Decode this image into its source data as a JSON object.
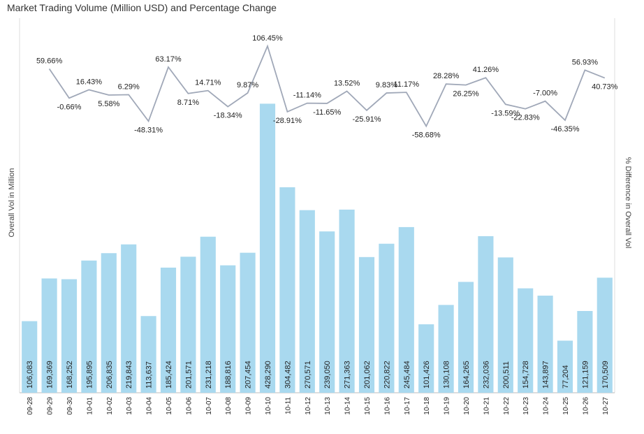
{
  "chart_data": {
    "type": "bar-line",
    "title": "Market Trading Volume (Million USD) and Percentage Change",
    "y_label": "Overall Vol in Million",
    "y2_label": "% Difference in Overall Vol",
    "categories": [
      "09-28",
      "09-29",
      "09-30",
      "10-01",
      "10-02",
      "10-03",
      "10-04",
      "10-05",
      "10-06",
      "10-07",
      "10-08",
      "10-09",
      "10-10",
      "10-11",
      "10-12",
      "10-13",
      "10-14",
      "10-15",
      "10-16",
      "10-17",
      "10-18",
      "10-19",
      "10-20",
      "10-21",
      "10-22",
      "10-23",
      "10-24",
      "10-25",
      "10-26",
      "10-27"
    ],
    "series": [
      {
        "type": "bar",
        "color": "#a9d9ef",
        "values": [
          106083,
          169369,
          168252,
          195895,
          206835,
          219843,
          113637,
          185424,
          201571,
          231218,
          188816,
          207454,
          428290,
          304482,
          270571,
          239050,
          271363,
          201062,
          220822,
          245484,
          101426,
          130108,
          164265,
          232036,
          200511,
          154728,
          143897,
          77204,
          121159,
          170509
        ],
        "value_labels": [
          "106,083",
          "169,369",
          "168,252",
          "195,895",
          "206,835",
          "219,843",
          "113,637",
          "185,424",
          "201,571",
          "231,218",
          "188,816",
          "207,454",
          "428,290",
          "304,482",
          "270,571",
          "239,050",
          "271,363",
          "201,062",
          "220,822",
          "245,484",
          "101,426",
          "130,108",
          "164,265",
          "232,036",
          "200,511",
          "154,728",
          "143,897",
          "77,204",
          "121,159",
          "170,509"
        ]
      },
      {
        "type": "line",
        "axis": "y2",
        "color": "#a0a8b8",
        "values": [
          null,
          59.66,
          -0.66,
          16.43,
          5.58,
          6.29,
          -48.31,
          63.17,
          8.71,
          14.71,
          -18.34,
          9.87,
          106.45,
          -28.91,
          -11.14,
          -11.65,
          13.52,
          -25.91,
          9.83,
          11.17,
          -58.68,
          28.28,
          26.25,
          41.26,
          -13.59,
          -22.83,
          -7.0,
          -46.35,
          56.93,
          40.73
        ],
        "value_labels": [
          null,
          "59.66%",
          "-0.66%",
          "16.43%",
          "5.58%",
          "6.29%",
          "-48.31%",
          "63.17%",
          "8.71%",
          "14.71%",
          "-18.34%",
          "9.87%",
          "106.45%",
          "-28.91%",
          "-11.14%",
          "-11.65%",
          "13.52%",
          "-25.91%",
          "9.83%",
          "11.17%",
          "-58.68%",
          "28.28%",
          "26.25%",
          "41.26%",
          "-13.59%",
          "-22.83%",
          "-7.00%",
          "-46.35%",
          "56.93%",
          "40.73%"
        ]
      }
    ],
    "ylim": [
      0,
      555000
    ],
    "y2lim": [
      -608,
      164
    ]
  }
}
